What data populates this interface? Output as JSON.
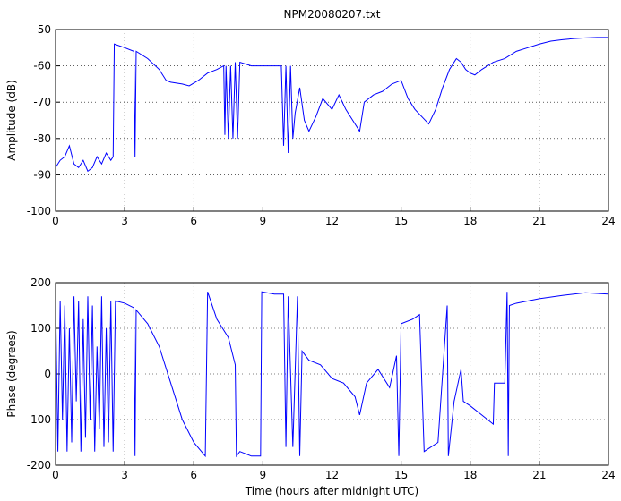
{
  "chart_data": [
    {
      "type": "line",
      "title": "NPM20080207.txt",
      "y_label": "Amplitude (dB)",
      "color": "#0000ff",
      "grid": true,
      "x": [
        0,
        0.2,
        0.4,
        0.6,
        0.8,
        1.0,
        1.2,
        1.4,
        1.6,
        1.8,
        2.0,
        2.2,
        2.4,
        2.5,
        2.55,
        3.0,
        3.4,
        3.45,
        3.5,
        4.0,
        4.5,
        4.8,
        5.0,
        5.5,
        5.8,
        6.2,
        6.6,
        7.0,
        7.3,
        7.35,
        7.4,
        7.5,
        7.6,
        7.7,
        7.8,
        7.9,
        8.0,
        8.5,
        9.0,
        9.5,
        9.8,
        9.9,
        10.0,
        10.1,
        10.2,
        10.3,
        10.4,
        10.6,
        10.8,
        11.0,
        11.3,
        11.6,
        12.0,
        12.3,
        12.6,
        12.9,
        13.2,
        13.4,
        13.8,
        14.2,
        14.6,
        15.0,
        15.3,
        15.6,
        15.9,
        16.2,
        16.5,
        16.8,
        17.1,
        17.4,
        17.6,
        17.8,
        18.0,
        18.2,
        18.5,
        19.0,
        19.5,
        20.0,
        20.5,
        21.0,
        21.5,
        22.0,
        22.5,
        23.0,
        23.5,
        24.0
      ],
      "values": [
        -88,
        -86,
        -85,
        -82,
        -87,
        -88,
        -86,
        -89,
        -88,
        -85,
        -87,
        -84,
        -86,
        -85,
        -54,
        -55,
        -56,
        -85,
        -56,
        -58,
        -61,
        -64,
        -64.5,
        -65,
        -65.5,
        -64,
        -62,
        -61,
        -60,
        -79,
        -60,
        -80,
        -60,
        -80,
        -59,
        -80,
        -59,
        -60,
        -60,
        -60,
        -60,
        -82,
        -60,
        -84,
        -60,
        -80,
        -73,
        -66,
        -75,
        -78,
        -74,
        -69,
        -72,
        -68,
        -72,
        -75,
        -78,
        -70,
        -68,
        -67,
        -65,
        -64,
        -69,
        -72,
        -74,
        -76,
        -72,
        -66,
        -61,
        -58,
        -59,
        -61,
        -62,
        -62.5,
        -61,
        -59,
        -58,
        -56,
        -55,
        -54,
        -53.2,
        -52.8,
        -52.5,
        -52.3,
        -52.2,
        -52.2
      ],
      "xlim": [
        0,
        24
      ],
      "xticks": [
        0,
        3,
        6,
        9,
        12,
        15,
        18,
        21,
        24
      ],
      "ylim": [
        -100,
        -50
      ],
      "yticks": [
        -100,
        -90,
        -80,
        -70,
        -60,
        -50
      ]
    },
    {
      "type": "line",
      "x_label": "Time (hours after midnight UTC)",
      "y_label": "Phase (degrees)",
      "color": "#0000ff",
      "grid": true,
      "x": [
        0,
        0.1,
        0.2,
        0.3,
        0.4,
        0.5,
        0.6,
        0.7,
        0.8,
        0.9,
        1.0,
        1.1,
        1.2,
        1.3,
        1.4,
        1.5,
        1.6,
        1.7,
        1.8,
        1.9,
        2.0,
        2.1,
        2.2,
        2.3,
        2.4,
        2.5,
        2.6,
        3.0,
        3.4,
        3.45,
        3.5,
        4.0,
        4.5,
        5.0,
        5.5,
        6.0,
        6.5,
        6.6,
        7.0,
        7.5,
        7.8,
        7.85,
        8.0,
        8.5,
        8.9,
        8.95,
        9.5,
        9.9,
        10.0,
        10.1,
        10.3,
        10.5,
        10.6,
        10.7,
        11.0,
        11.5,
        12.0,
        12.5,
        13.0,
        13.2,
        13.5,
        14.0,
        14.5,
        14.8,
        14.9,
        15.0,
        15.5,
        15.8,
        16.0,
        16.3,
        16.6,
        17.0,
        17.05,
        17.3,
        17.6,
        17.7,
        18.0,
        18.5,
        19.0,
        19.05,
        19.5,
        19.6,
        19.65,
        19.7,
        20.0,
        21.0,
        22.0,
        23.0,
        24.0
      ],
      "values": [
        170,
        -170,
        160,
        -100,
        150,
        -170,
        100,
        -150,
        170,
        -60,
        160,
        -170,
        120,
        -140,
        170,
        -100,
        150,
        -170,
        60,
        -120,
        170,
        -160,
        100,
        -150,
        160,
        -170,
        160,
        155,
        145,
        -180,
        140,
        110,
        60,
        -20,
        -100,
        -150,
        -180,
        180,
        120,
        80,
        20,
        -180,
        -170,
        -180,
        -180,
        180,
        175,
        175,
        -160,
        170,
        -160,
        170,
        -180,
        50,
        30,
        20,
        -10,
        -20,
        -50,
        -90,
        -20,
        10,
        -30,
        40,
        -180,
        110,
        120,
        130,
        -170,
        -160,
        -150,
        150,
        -180,
        -60,
        10,
        -60,
        -70,
        -90,
        -110,
        -20,
        -20,
        180,
        -180,
        150,
        155,
        165,
        172,
        178,
        175
      ],
      "xlim": [
        0,
        24
      ],
      "xticks": [
        0,
        3,
        6,
        9,
        12,
        15,
        18,
        21,
        24
      ],
      "ylim": [
        -200,
        200
      ],
      "yticks": [
        -200,
        -100,
        0,
        100,
        200
      ]
    }
  ]
}
